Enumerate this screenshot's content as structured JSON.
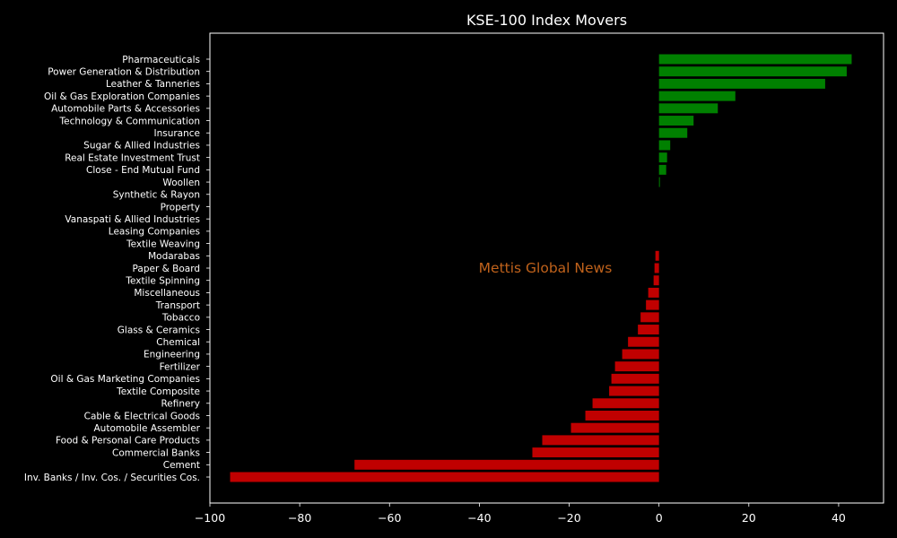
{
  "chart_data": {
    "type": "bar",
    "orientation": "horizontal",
    "title": "KSE-100 Index Movers",
    "xlabel": "",
    "ylabel": "",
    "xlim": [
      -100,
      50
    ],
    "xticks": [
      -100,
      -80,
      -60,
      -40,
      -20,
      0,
      20,
      40
    ],
    "grid": false,
    "watermark": "Mettis Global News",
    "colors": {
      "positive": "#008000",
      "negative": "#c00000",
      "background": "#000000",
      "text": "#ffffff",
      "watermark": "#c0621b"
    },
    "categories": [
      "Pharmaceuticals",
      "Power Generation & Distribution",
      "Leather & Tanneries",
      "Oil & Gas Exploration Companies",
      "Automobile Parts & Accessories",
      "Technology & Communication",
      "Insurance",
      "Sugar & Allied Industries",
      "Real Estate Investment Trust",
      "Close - End Mutual Fund",
      "Woollen",
      "Synthetic & Rayon",
      "Property",
      "Vanaspati & Allied Industries",
      "Leasing Companies",
      "Textile Weaving",
      "Modarabas",
      "Paper & Board",
      "Textile Spinning",
      "Miscellaneous",
      "Transport",
      "Tobacco",
      "Glass & Ceramics",
      "Chemical",
      "Engineering",
      "Fertilizer",
      "Oil & Gas Marketing Companies",
      "Textile Composite",
      "Refinery",
      "Cable & Electrical Goods",
      "Automobile Assembler",
      "Food & Personal Care Products",
      "Commercial Banks",
      "Cement",
      "Inv. Banks / Inv. Cos. / Securities Cos."
    ],
    "values": [
      42.9,
      41.8,
      37.0,
      17.0,
      13.1,
      7.7,
      6.3,
      2.5,
      1.8,
      1.6,
      0.2,
      0,
      0,
      0,
      0,
      0,
      -0.8,
      -1.0,
      -1.2,
      -2.4,
      -2.9,
      -4.1,
      -4.7,
      -6.9,
      -8.2,
      -9.8,
      -10.6,
      -11.1,
      -14.8,
      -16.4,
      -19.6,
      -26.0,
      -28.2,
      -67.8,
      -95.5
    ]
  }
}
